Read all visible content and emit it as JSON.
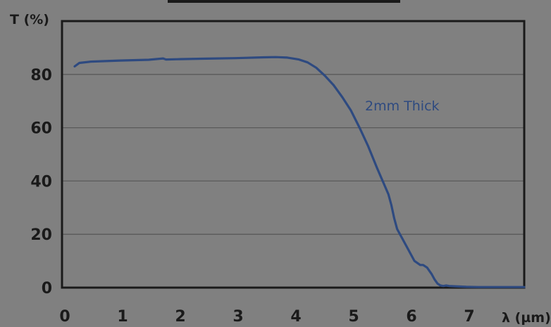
{
  "chart_data": {
    "type": "line",
    "title": "",
    "xlabel": "λ (µm)",
    "ylabel": "T (%)",
    "xlim": [
      0,
      8
    ],
    "ylim": [
      0,
      100
    ],
    "x_ticks": [
      "0",
      "1",
      "2",
      "3",
      "4",
      "5",
      "6",
      "7"
    ],
    "y_ticks": [
      "0",
      "20",
      "40",
      "60",
      "80"
    ],
    "grid": "horizontal",
    "series": [
      {
        "name": "2mm Thick",
        "color": "#2e4a80",
        "x": [
          0.22,
          0.3,
          0.5,
          0.75,
          1.0,
          1.5,
          1.75,
          1.8,
          2.0,
          2.5,
          3.0,
          3.5,
          3.7,
          3.9,
          4.1,
          4.25,
          4.4,
          4.55,
          4.7,
          4.85,
          5.0,
          5.15,
          5.3,
          5.45,
          5.55,
          5.65,
          5.7,
          5.75,
          5.8,
          5.9,
          6.0,
          6.1,
          6.2,
          6.25,
          6.32,
          6.4,
          6.45,
          6.5,
          6.55,
          6.6,
          6.65,
          6.7,
          6.8,
          7.0,
          7.2,
          7.5,
          7.8,
          8.0
        ],
        "values": [
          83,
          84.3,
          84.8,
          85.0,
          85.2,
          85.5,
          86.0,
          85.6,
          85.7,
          85.9,
          86.1,
          86.4,
          86.5,
          86.3,
          85.6,
          84.5,
          82.5,
          79.5,
          76,
          71.5,
          66.5,
          60,
          53,
          45,
          40,
          35,
          31,
          26,
          22,
          18,
          14,
          10,
          8.5,
          8.5,
          7.5,
          5,
          3,
          1.5,
          0.8,
          0.6,
          0.8,
          0.6,
          0.5,
          0.3,
          0.2,
          0.2,
          0.2,
          0.2
        ]
      }
    ]
  }
}
